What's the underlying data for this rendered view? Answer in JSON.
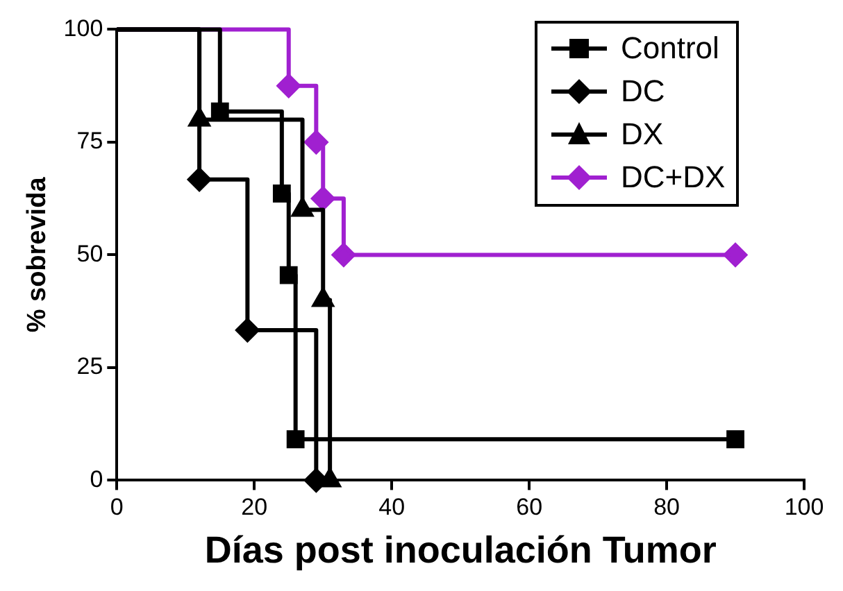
{
  "chart_data": {
    "type": "step",
    "xlabel": "Días post inoculación Tumor",
    "ylabel": "% sobrevida",
    "xlim": [
      0,
      100
    ],
    "xticks": [
      0,
      20,
      40,
      60,
      80,
      100
    ],
    "ylim": [
      0,
      100
    ],
    "yticks": [
      0,
      25,
      50,
      75,
      100
    ],
    "grid": false,
    "legend": "top right",
    "series": [
      {
        "name": "Control",
        "color": "#000000",
        "marker": "square",
        "x": [
          0,
          15,
          24,
          25,
          26,
          90
        ],
        "values": [
          100,
          81.8,
          63.6,
          45.5,
          9.1,
          9.1
        ]
      },
      {
        "name": "DC",
        "color": "#000000",
        "marker": "diamond",
        "x": [
          0,
          12,
          19,
          29
        ],
        "values": [
          100,
          66.7,
          33.3,
          0
        ]
      },
      {
        "name": "DX",
        "color": "#000000",
        "marker": "triangle",
        "x": [
          0,
          12,
          27,
          30,
          31
        ],
        "values": [
          100,
          80,
          60,
          40,
          0
        ]
      },
      {
        "name": "DC+DX",
        "color": "#a020d0",
        "marker": "diamond",
        "x": [
          0,
          25,
          29,
          30,
          33,
          90
        ],
        "values": [
          100,
          87.5,
          75,
          62.5,
          50,
          50
        ]
      }
    ]
  }
}
